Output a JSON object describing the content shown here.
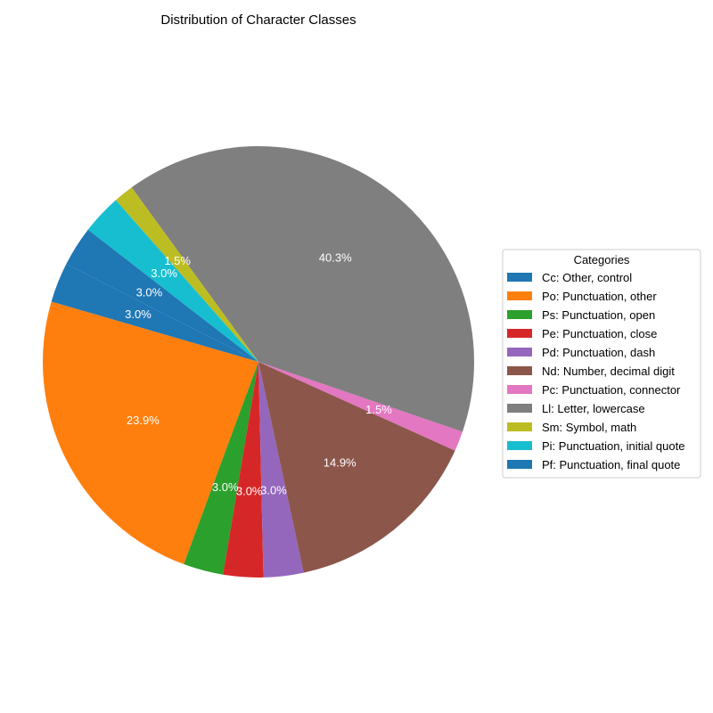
{
  "chart_data": {
    "type": "pie",
    "title": "Distribution of Character Classes",
    "legend_title": "Categories",
    "legend_position": "center-right",
    "start_angle_deg": 153,
    "direction": "counterclockwise",
    "slices": [
      {
        "label": "Cc: Other, control",
        "value": 3.0,
        "pct_label": "3.0%",
        "color": "#1f77b4"
      },
      {
        "label": "Po: Punctuation, other",
        "value": 23.9,
        "pct_label": "23.9%",
        "color": "#ff7f0e"
      },
      {
        "label": "Ps: Punctuation, open",
        "value": 3.0,
        "pct_label": "3.0%",
        "color": "#2ca02c"
      },
      {
        "label": "Pe: Punctuation, close",
        "value": 3.0,
        "pct_label": "3.0%",
        "color": "#d62728"
      },
      {
        "label": "Pd: Punctuation, dash",
        "value": 3.0,
        "pct_label": "3.0%",
        "color": "#9467bd"
      },
      {
        "label": "Nd: Number, decimal digit",
        "value": 14.9,
        "pct_label": "14.9%",
        "color": "#8c564b"
      },
      {
        "label": "Pc: Punctuation, connector",
        "value": 1.5,
        "pct_label": "1.5%",
        "color": "#e377c2"
      },
      {
        "label": "Ll: Letter, lowercase",
        "value": 40.3,
        "pct_label": "40.3%",
        "color": "#7f7f7f"
      },
      {
        "label": "Sm: Symbol, math",
        "value": 1.5,
        "pct_label": "1.5%",
        "color": "#bcbd22"
      },
      {
        "label": "Pi: Punctuation, initial quote",
        "value": 3.0,
        "pct_label": "3.0%",
        "color": "#17becf"
      },
      {
        "label": "Pf: Punctuation, final quote",
        "value": 3.0,
        "pct_label": "3.0%",
        "color": "#1f77b4"
      }
    ]
  }
}
